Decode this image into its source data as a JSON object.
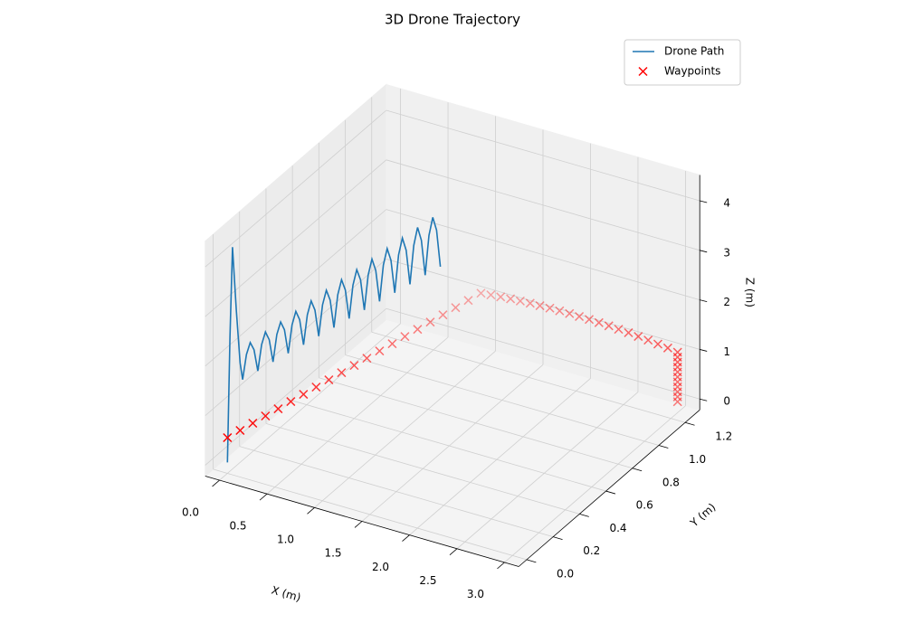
{
  "chart_data": {
    "type": "3d",
    "title": "3D Drone Trajectory",
    "xlabel": "X (m)",
    "ylabel": "Y (m)",
    "zlabel": "Z (m)",
    "xlim": [
      -0.15,
      3.15
    ],
    "ylim": [
      -0.06,
      1.31
    ],
    "zlim": [
      -0.22,
      4.52
    ],
    "xticks": [
      {
        "value": 0,
        "label": "0.0"
      },
      {
        "value": 0.5,
        "label": "0.5"
      },
      {
        "value": 1,
        "label": "1.0"
      },
      {
        "value": 1.5,
        "label": "1.5"
      },
      {
        "value": 2,
        "label": "2.0"
      },
      {
        "value": 2.5,
        "label": "2.5"
      },
      {
        "value": 3,
        "label": "3.0"
      }
    ],
    "yticks": [
      {
        "value": 0,
        "label": "0.0"
      },
      0.2,
      0.4,
      0.6,
      0.8,
      {
        "value": 1,
        "label": "1.0"
      },
      1.2
    ],
    "zticks": [
      0,
      1,
      2,
      3,
      4
    ],
    "grid": true,
    "legend": "upper right",
    "series": [
      {
        "name": "Drone Path",
        "type": "line",
        "color": "#1f77b4",
        "x": [
          0,
          0.01,
          0.02,
          0.035,
          0.05,
          0.06,
          0.075,
          0.09,
          0.105,
          0.12,
          0.135,
          0.15,
          0.165,
          0.18,
          0.195,
          0.21,
          0.225,
          0.24,
          0.255,
          0.27,
          0.285,
          0.3,
          0.315,
          0.33,
          0.345,
          0.36,
          0.375,
          0.39,
          0.405,
          0.42,
          0.435,
          0.45,
          0.465,
          0.48,
          0.495,
          0.51,
          0.525,
          0.54,
          0.555,
          0.57,
          0.585,
          0.6,
          0.615,
          0.63,
          0.645,
          0.66,
          0.675,
          0.69,
          0.705,
          0.72,
          0.735,
          0.75,
          0.765,
          0.78,
          0.795,
          0.81,
          0.825,
          0.84
        ],
        "y": [
          0,
          0.012,
          0.024,
          0.042,
          0.06,
          0.072,
          0.09,
          0.108,
          0.126,
          0.144,
          0.162,
          0.18,
          0.198,
          0.216,
          0.234,
          0.252,
          0.27,
          0.288,
          0.306,
          0.324,
          0.342,
          0.36,
          0.378,
          0.396,
          0.414,
          0.432,
          0.45,
          0.468,
          0.486,
          0.504,
          0.522,
          0.54,
          0.558,
          0.576,
          0.594,
          0.612,
          0.63,
          0.648,
          0.666,
          0.684,
          0.702,
          0.72,
          0.738,
          0.756,
          0.774,
          0.792,
          0.81,
          0.828,
          0.846,
          0.864,
          0.882,
          0.9,
          0.918,
          0.936,
          0.954,
          0.972,
          0.99,
          1.008
        ],
        "z": [
          0,
          2.5,
          4.3,
          3.0,
          1.9,
          1.54,
          2.01,
          2.22,
          2.04,
          1.58,
          2.08,
          2.3,
          2.11,
          1.63,
          2.15,
          2.37,
          2.18,
          1.67,
          2.21,
          2.45,
          2.25,
          1.71,
          2.28,
          2.53,
          2.31,
          1.75,
          2.35,
          2.61,
          2.38,
          1.79,
          2.42,
          2.69,
          2.45,
          1.84,
          2.48,
          2.76,
          2.52,
          1.88,
          2.55,
          2.84,
          2.58,
          1.92,
          2.62,
          2.92,
          2.65,
          1.96,
          2.69,
          3.0,
          2.72,
          2.0,
          2.75,
          3.08,
          2.79,
          2.05,
          2.82,
          3.15,
          2.86,
          2.09
        ]
      },
      {
        "name": "Waypoints",
        "type": "scatter",
        "color": "#ff0000",
        "x": [
          0,
          0.05,
          0.1,
          0.15,
          0.2,
          0.25,
          0.3,
          0.35,
          0.4,
          0.45,
          0.5,
          0.55,
          0.6,
          0.65,
          0.7,
          0.75,
          0.8,
          0.85,
          0.9,
          0.95,
          1.0,
          1.1,
          1.2,
          1.3,
          1.4,
          1.5,
          1.6,
          1.7,
          1.8,
          1.9,
          2.0,
          2.1,
          2.2,
          2.3,
          2.4,
          2.5,
          2.6,
          2.7,
          2.8,
          2.9,
          3.0,
          3.0,
          3.0,
          3.0,
          3.0,
          3.0,
          3.0,
          3.0,
          3.0,
          3.0,
          3.0
        ],
        "y": [
          0,
          0.06,
          0.12,
          0.18,
          0.24,
          0.3,
          0.36,
          0.42,
          0.48,
          0.54,
          0.6,
          0.66,
          0.72,
          0.78,
          0.84,
          0.9,
          0.96,
          1.02,
          1.08,
          1.14,
          1.2,
          1.203,
          1.205,
          1.208,
          1.21,
          1.213,
          1.215,
          1.218,
          1.22,
          1.223,
          1.225,
          1.228,
          1.23,
          1.233,
          1.235,
          1.238,
          1.24,
          1.243,
          1.245,
          1.248,
          1.25,
          1.25,
          1.25,
          1.25,
          1.25,
          1.25,
          1.25,
          1.25,
          1.25,
          1.25,
          1.25
        ],
        "z": [
          0.5,
          0.535,
          0.57,
          0.605,
          0.64,
          0.675,
          0.71,
          0.745,
          0.78,
          0.815,
          0.85,
          0.885,
          0.92,
          0.955,
          0.99,
          1.025,
          1.06,
          1.095,
          1.13,
          1.165,
          1.2,
          1.214,
          1.225,
          1.234,
          1.24,
          1.244,
          1.245,
          1.244,
          1.24,
          1.234,
          1.225,
          1.214,
          1.2,
          1.184,
          1.165,
          1.144,
          1.12,
          1.094,
          1.065,
          1.034,
          1.0,
          0.9,
          0.8,
          0.7,
          0.6,
          0.5,
          0.4,
          0.3,
          0.2,
          0.1,
          0.0
        ]
      }
    ]
  }
}
